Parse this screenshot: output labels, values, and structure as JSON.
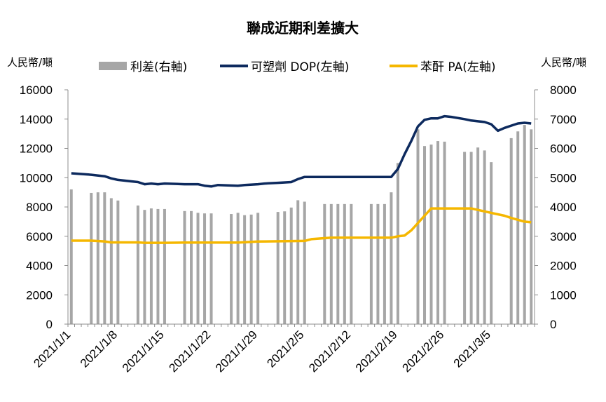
{
  "chart_data": {
    "type": "bar+line",
    "title": "聯成近期利差擴大",
    "left_unit": "人民幣/噸",
    "right_unit": "人民幣/噸",
    "left_ylim": [
      0,
      16000
    ],
    "left_ticks": [
      "16000",
      "14000",
      "12000",
      "10000",
      "8000",
      "6000",
      "4000",
      "2000",
      "0"
    ],
    "right_ylim": [
      0,
      8000
    ],
    "right_ticks": [
      "8000",
      "7000",
      "6000",
      "5000",
      "4000",
      "3000",
      "2000",
      "1000",
      "0"
    ],
    "x_days": 70,
    "x_ticks": [
      {
        "day": 0,
        "label": "2021/1/1"
      },
      {
        "day": 7,
        "label": "2021/1/8"
      },
      {
        "day": 14,
        "label": "2021/1/15"
      },
      {
        "day": 21,
        "label": "2021/1/22"
      },
      {
        "day": 28,
        "label": "2021/1/29"
      },
      {
        "day": 35,
        "label": "2021/2/5"
      },
      {
        "day": 42,
        "label": "2021/2/12"
      },
      {
        "day": 49,
        "label": "2021/2/19"
      },
      {
        "day": 56,
        "label": "2021/2/26"
      },
      {
        "day": 63,
        "label": "2021/3/5"
      }
    ],
    "legend": [
      {
        "key": "spread",
        "label": "利差(右軸)",
        "color": "#a6a6a6",
        "kind": "bar"
      },
      {
        "key": "dop",
        "label": "可塑劑 DOP(左軸)",
        "color": "#0d2a5e",
        "kind": "line"
      },
      {
        "key": "pa",
        "label": "苯酐 PA(左軸)",
        "color": "#f5b700",
        "kind": "line"
      }
    ],
    "spread_bars": [
      [
        0,
        4600
      ],
      [
        3,
        4480
      ],
      [
        4,
        4500
      ],
      [
        5,
        4500
      ],
      [
        6,
        4300
      ],
      [
        7,
        4220
      ],
      [
        10,
        4050
      ],
      [
        11,
        3900
      ],
      [
        12,
        3950
      ],
      [
        13,
        3930
      ],
      [
        14,
        3930
      ],
      [
        17,
        3860
      ],
      [
        18,
        3860
      ],
      [
        19,
        3800
      ],
      [
        20,
        3780
      ],
      [
        21,
        3780
      ],
      [
        24,
        3760
      ],
      [
        25,
        3800
      ],
      [
        26,
        3720
      ],
      [
        27,
        3740
      ],
      [
        28,
        3800
      ],
      [
        31,
        3830
      ],
      [
        32,
        3850
      ],
      [
        33,
        3980
      ],
      [
        34,
        4230
      ],
      [
        35,
        4180
      ],
      [
        38,
        4100
      ],
      [
        39,
        4100
      ],
      [
        40,
        4100
      ],
      [
        41,
        4100
      ],
      [
        42,
        4100
      ],
      [
        45,
        4100
      ],
      [
        46,
        4100
      ],
      [
        47,
        4100
      ],
      [
        48,
        4500
      ],
      [
        49,
        5500
      ],
      [
        52,
        6650
      ],
      [
        53,
        6080
      ],
      [
        54,
        6130
      ],
      [
        55,
        6250
      ],
      [
        56,
        6230
      ],
      [
        59,
        5880
      ],
      [
        60,
        5880
      ],
      [
        61,
        6030
      ],
      [
        62,
        5930
      ],
      [
        63,
        5530
      ],
      [
        66,
        6350
      ],
      [
        67,
        6580
      ],
      [
        68,
        6800
      ],
      [
        69,
        6650
      ]
    ],
    "dop_line": [
      [
        0,
        10300
      ],
      [
        3,
        10200
      ],
      [
        5,
        10100
      ],
      [
        6,
        9950
      ],
      [
        7,
        9850
      ],
      [
        9,
        9750
      ],
      [
        10,
        9700
      ],
      [
        11,
        9550
      ],
      [
        12,
        9600
      ],
      [
        13,
        9550
      ],
      [
        14,
        9600
      ],
      [
        17,
        9550
      ],
      [
        19,
        9550
      ],
      [
        20,
        9450
      ],
      [
        21,
        9400
      ],
      [
        22,
        9500
      ],
      [
        25,
        9450
      ],
      [
        26,
        9500
      ],
      [
        28,
        9550
      ],
      [
        29,
        9600
      ],
      [
        31,
        9650
      ],
      [
        33,
        9700
      ],
      [
        34,
        9900
      ],
      [
        35,
        10050
      ],
      [
        42,
        10050
      ],
      [
        47,
        10050
      ],
      [
        48,
        10050
      ],
      [
        49,
        10600
      ],
      [
        50,
        11600
      ],
      [
        51,
        12500
      ],
      [
        52,
        13500
      ],
      [
        53,
        13950
      ],
      [
        54,
        14050
      ],
      [
        55,
        14050
      ],
      [
        56,
        14200
      ],
      [
        57,
        14150
      ],
      [
        59,
        14000
      ],
      [
        60,
        13900
      ],
      [
        61,
        13850
      ],
      [
        62,
        13800
      ],
      [
        63,
        13650
      ],
      [
        64,
        13200
      ],
      [
        65,
        13400
      ],
      [
        66,
        13550
      ],
      [
        67,
        13700
      ],
      [
        68,
        13750
      ],
      [
        69,
        13700
      ]
    ],
    "pa_line": [
      [
        0,
        5700
      ],
      [
        3,
        5700
      ],
      [
        5,
        5650
      ],
      [
        6,
        5580
      ],
      [
        10,
        5580
      ],
      [
        11,
        5550
      ],
      [
        14,
        5550
      ],
      [
        17,
        5570
      ],
      [
        21,
        5570
      ],
      [
        25,
        5570
      ],
      [
        26,
        5590
      ],
      [
        28,
        5640
      ],
      [
        35,
        5680
      ],
      [
        36,
        5800
      ],
      [
        39,
        5900
      ],
      [
        42,
        5900
      ],
      [
        47,
        5900
      ],
      [
        48,
        5900
      ],
      [
        49,
        6000
      ],
      [
        50,
        6050
      ],
      [
        51,
        6400
      ],
      [
        52,
        6900
      ],
      [
        53,
        7400
      ],
      [
        54,
        7900
      ],
      [
        55,
        7900
      ],
      [
        60,
        7900
      ],
      [
        62,
        7700
      ],
      [
        63,
        7600
      ],
      [
        65,
        7400
      ],
      [
        66,
        7250
      ],
      [
        68,
        7000
      ],
      [
        69,
        6950
      ]
    ]
  }
}
